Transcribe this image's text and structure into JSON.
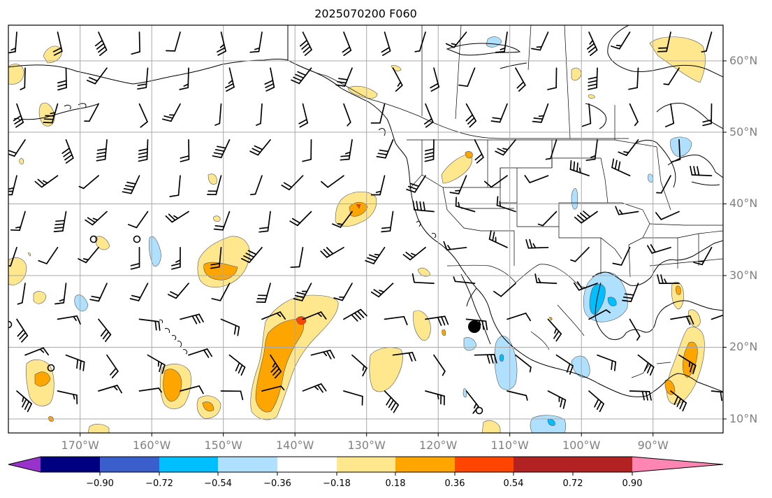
{
  "title": "2025070200 F060",
  "lon_labels": [
    "170°W",
    "160°W",
    "150°W",
    "140°W",
    "130°W",
    "120°W",
    "110°W",
    "100°W",
    "90°W"
  ],
  "lat_labels": [
    "60°N",
    "50°N",
    "40°N",
    "30°N",
    "20°N",
    "10°N"
  ],
  "colorbar": {
    "tick_labels": [
      "−0.90",
      "−0.72",
      "−0.54",
      "−0.36",
      "−0.18",
      "0.18",
      "0.36",
      "0.54",
      "0.72",
      "0.90"
    ],
    "colors": [
      "#9932cc",
      "#000080",
      "#3a5fcd",
      "#00bfff",
      "#afe1ff",
      "#ffffff",
      "#ffe78e",
      "#ffa500",
      "#ff4500",
      "#b22222",
      "#ff85b3"
    ]
  },
  "field_colors": {
    "light_positive": "#ffe78e",
    "medium_positive": "#ffa500",
    "strong_positive": "#ff4500",
    "light_negative": "#afe1ff",
    "medium_negative": "#00bfff"
  }
}
